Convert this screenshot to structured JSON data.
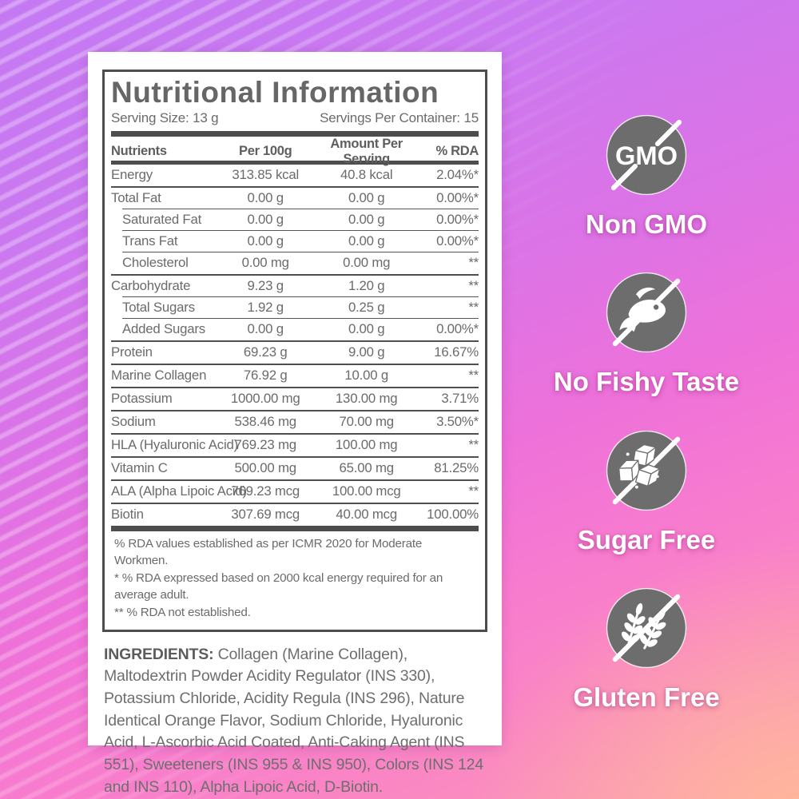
{
  "label_card": {
    "title": "Nutritional Information",
    "serving_size": "Serving Size: 13 g",
    "servings_per_container": "Servings Per Container: 15",
    "table": {
      "headers": [
        "Nutrients",
        "Per 100g",
        "Amount Per Serving",
        "% RDA"
      ],
      "rows": [
        {
          "name": "Energy",
          "per_100g": "313.85 kcal",
          "per_serving": "40.8 kcal",
          "rda": "2.04%*",
          "indent": false
        },
        {
          "name": "Total Fat",
          "per_100g": "0.00 g",
          "per_serving": "0.00 g",
          "rda": "0.00%*",
          "indent": false
        },
        {
          "name": "Saturated Fat",
          "per_100g": "0.00 g",
          "per_serving": "0.00 g",
          "rda": "0.00%*",
          "indent": true
        },
        {
          "name": "Trans Fat",
          "per_100g": "0.00 g",
          "per_serving": "0.00 g",
          "rda": "0.00%*",
          "indent": true
        },
        {
          "name": "Cholesterol",
          "per_100g": "0.00 mg",
          "per_serving": "0.00 mg",
          "rda": "**",
          "indent": true
        },
        {
          "name": "Carbohydrate",
          "per_100g": "9.23 g",
          "per_serving": "1.20 g",
          "rda": "**",
          "indent": false
        },
        {
          "name": "Total Sugars",
          "per_100g": "1.92 g",
          "per_serving": "0.25 g",
          "rda": "**",
          "indent": true
        },
        {
          "name": "Added Sugars",
          "per_100g": "0.00 g",
          "per_serving": "0.00 g",
          "rda": "0.00%*",
          "indent": true
        },
        {
          "name": "Protein",
          "per_100g": "69.23 g",
          "per_serving": "9.00 g",
          "rda": "16.67%",
          "indent": false
        },
        {
          "name": "Marine Collagen",
          "per_100g": "76.92 g",
          "per_serving": "10.00 g",
          "rda": "**",
          "indent": false
        },
        {
          "name": "Potassium",
          "per_100g": "1000.00 mg",
          "per_serving": "130.00 mg",
          "rda": "3.71%",
          "indent": false
        },
        {
          "name": "Sodium",
          "per_100g": "538.46 mg",
          "per_serving": "70.00 mg",
          "rda": "3.50%*",
          "indent": false
        },
        {
          "name": "HLA (Hyaluronic Acid)",
          "per_100g": "769.23 mg",
          "per_serving": "100.00 mg",
          "rda": "**",
          "indent": false
        },
        {
          "name": "Vitamin C",
          "per_100g": "500.00 mg",
          "per_serving": "65.00 mg",
          "rda": "81.25%",
          "indent": false
        },
        {
          "name": "ALA (Alpha Lipoic Acid)",
          "per_100g": "769.23 mcg",
          "per_serving": "100.00 mcg",
          "rda": "**",
          "indent": false
        },
        {
          "name": "Biotin",
          "per_100g": "307.69 mcg",
          "per_serving": "40.00 mcg",
          "rda": "100.00%",
          "indent": false
        }
      ]
    },
    "footnotes": [
      "% RDA values established as per ICMR 2020 for Moderate Workmen.",
      "* % RDA expressed based on 2000 kcal energy required for an average adult.",
      "** % RDA not established."
    ],
    "ingredients_label": "INGREDIENTS:",
    "ingredients_text": "Collagen (Marine Collagen), Maltodextrin Powder Acidity Regulator (INS 330), Potassium Chloride, Acidity Regula (INS 296), Nature Identical Orange Flavor, Sodium Chloride, Hyaluronic Acid, L-Ascorbic Acid Coated, Anti-Caking Agent (INS 551), Sweeteners (INS 955 & INS 950), Colors (INS 124 and INS 110), Alpha Lipoic Acid, D-Biotin."
  },
  "badges": [
    {
      "icon": "gmo-crossed-icon",
      "circle_text": "GMO",
      "label": "Non GMO"
    },
    {
      "icon": "fish-crossed-icon",
      "label": "No Fishy Taste"
    },
    {
      "icon": "sugar-cubes-crossed-icon",
      "label": "Sugar Free"
    },
    {
      "icon": "wheat-crossed-icon",
      "label": "Gluten Free"
    }
  ],
  "colors": {
    "badge_circle": "#6d6d6d",
    "label_ink": "#6a6a6a",
    "table_border": "#4d4d4d",
    "background_top_left": "#c479f2",
    "background_middle": "#ee71da",
    "background_bottom": "#fa86c3",
    "background_bottom_right": "#ffba96"
  }
}
